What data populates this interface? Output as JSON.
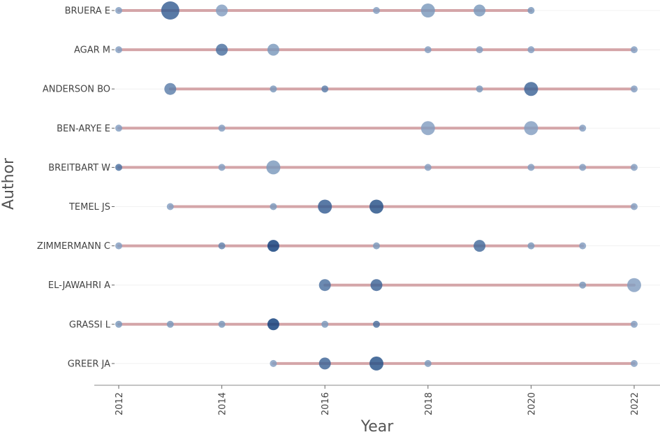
{
  "chart_data": {
    "type": "scatter",
    "subtype": "timeline-bubble",
    "xlabel": "Year",
    "ylabel": "Author",
    "xlim": [
      2012,
      2022
    ],
    "x_ticks": [
      "2012",
      "2014",
      "2016",
      "2018",
      "2020",
      "2022"
    ],
    "grid": "horizontal-light",
    "legend": "none",
    "colors": {
      "line": "#d4a5a8",
      "point_light": "#a9bfd8",
      "point_dark": "#0d3c7a",
      "axis": "#888888"
    },
    "authors": [
      {
        "name": "BRUERA E",
        "range": [
          2012,
          2020
        ],
        "points": [
          {
            "year": 2012,
            "size": 1,
            "shade": 0.25
          },
          {
            "year": 2013,
            "size": 5,
            "shade": 0.75
          },
          {
            "year": 2014,
            "size": 3,
            "shade": 0.25
          },
          {
            "year": 2017,
            "size": 1,
            "shade": 0.25
          },
          {
            "year": 2018,
            "size": 4,
            "shade": 0.3
          },
          {
            "year": 2019,
            "size": 3,
            "shade": 0.3
          },
          {
            "year": 2020,
            "size": 1,
            "shade": 0.3
          }
        ]
      },
      {
        "name": "AGAR M",
        "range": [
          2012,
          2022
        ],
        "points": [
          {
            "year": 2012,
            "size": 1,
            "shade": 0.25
          },
          {
            "year": 2014,
            "size": 3,
            "shade": 0.6
          },
          {
            "year": 2015,
            "size": 3,
            "shade": 0.3
          },
          {
            "year": 2018,
            "size": 1,
            "shade": 0.25
          },
          {
            "year": 2019,
            "size": 1,
            "shade": 0.25
          },
          {
            "year": 2020,
            "size": 1,
            "shade": 0.25
          },
          {
            "year": 2022,
            "size": 1,
            "shade": 0.25
          }
        ]
      },
      {
        "name": "ANDERSON BO",
        "range": [
          2013,
          2022
        ],
        "points": [
          {
            "year": 2013,
            "size": 3,
            "shade": 0.5
          },
          {
            "year": 2015,
            "size": 1,
            "shade": 0.3
          },
          {
            "year": 2016,
            "size": 1,
            "shade": 0.5
          },
          {
            "year": 2019,
            "size": 1,
            "shade": 0.3
          },
          {
            "year": 2020,
            "size": 4,
            "shade": 0.7
          },
          {
            "year": 2022,
            "size": 1,
            "shade": 0.25
          }
        ]
      },
      {
        "name": "BEN-ARYE E",
        "range": [
          2012,
          2021
        ],
        "points": [
          {
            "year": 2012,
            "size": 1,
            "shade": 0.25
          },
          {
            "year": 2014,
            "size": 1,
            "shade": 0.25
          },
          {
            "year": 2018,
            "size": 4,
            "shade": 0.25
          },
          {
            "year": 2020,
            "size": 4,
            "shade": 0.25
          },
          {
            "year": 2021,
            "size": 1,
            "shade": 0.25
          }
        ]
      },
      {
        "name": "BREITBART W",
        "range": [
          2012,
          2022
        ],
        "points": [
          {
            "year": 2012,
            "size": 1,
            "shade": 0.6
          },
          {
            "year": 2014,
            "size": 1,
            "shade": 0.25
          },
          {
            "year": 2015,
            "size": 4,
            "shade": 0.3
          },
          {
            "year": 2018,
            "size": 1,
            "shade": 0.25
          },
          {
            "year": 2020,
            "size": 1,
            "shade": 0.25
          },
          {
            "year": 2021,
            "size": 1,
            "shade": 0.25
          },
          {
            "year": 2022,
            "size": 1,
            "shade": 0.25
          }
        ]
      },
      {
        "name": "TEMEL JS",
        "range": [
          2013,
          2022
        ],
        "points": [
          {
            "year": 2013,
            "size": 1,
            "shade": 0.25
          },
          {
            "year": 2015,
            "size": 1,
            "shade": 0.3
          },
          {
            "year": 2016,
            "size": 4,
            "shade": 0.75
          },
          {
            "year": 2017,
            "size": 4,
            "shade": 0.85
          },
          {
            "year": 2022,
            "size": 1,
            "shade": 0.25
          }
        ]
      },
      {
        "name": "ZIMMERMANN C",
        "range": [
          2012,
          2021
        ],
        "points": [
          {
            "year": 2012,
            "size": 1,
            "shade": 0.25
          },
          {
            "year": 2014,
            "size": 1,
            "shade": 0.45
          },
          {
            "year": 2015,
            "size": 3,
            "shade": 1.0
          },
          {
            "year": 2017,
            "size": 1,
            "shade": 0.3
          },
          {
            "year": 2019,
            "size": 3,
            "shade": 0.65
          },
          {
            "year": 2020,
            "size": 1,
            "shade": 0.3
          },
          {
            "year": 2021,
            "size": 1,
            "shade": 0.25
          }
        ]
      },
      {
        "name": "EL-JAWAHRI A",
        "range": [
          2016,
          2022
        ],
        "points": [
          {
            "year": 2016,
            "size": 3,
            "shade": 0.6
          },
          {
            "year": 2017,
            "size": 3,
            "shade": 0.7
          },
          {
            "year": 2021,
            "size": 1,
            "shade": 0.3
          },
          {
            "year": 2022,
            "size": 4,
            "shade": 0.25
          }
        ]
      },
      {
        "name": "GRASSI L",
        "range": [
          2012,
          2022
        ],
        "points": [
          {
            "year": 2012,
            "size": 1,
            "shade": 0.3
          },
          {
            "year": 2013,
            "size": 1,
            "shade": 0.3
          },
          {
            "year": 2014,
            "size": 1,
            "shade": 0.3
          },
          {
            "year": 2015,
            "size": 3,
            "shade": 1.0
          },
          {
            "year": 2016,
            "size": 1,
            "shade": 0.3
          },
          {
            "year": 2017,
            "size": 1,
            "shade": 0.6
          },
          {
            "year": 2022,
            "size": 1,
            "shade": 0.25
          }
        ]
      },
      {
        "name": "GREER JA",
        "range": [
          2015,
          2022
        ],
        "points": [
          {
            "year": 2015,
            "size": 1,
            "shade": 0.25
          },
          {
            "year": 2016,
            "size": 3,
            "shade": 0.7
          },
          {
            "year": 2017,
            "size": 4,
            "shade": 0.85
          },
          {
            "year": 2018,
            "size": 1,
            "shade": 0.3
          },
          {
            "year": 2022,
            "size": 1,
            "shade": 0.25
          }
        ]
      }
    ]
  }
}
